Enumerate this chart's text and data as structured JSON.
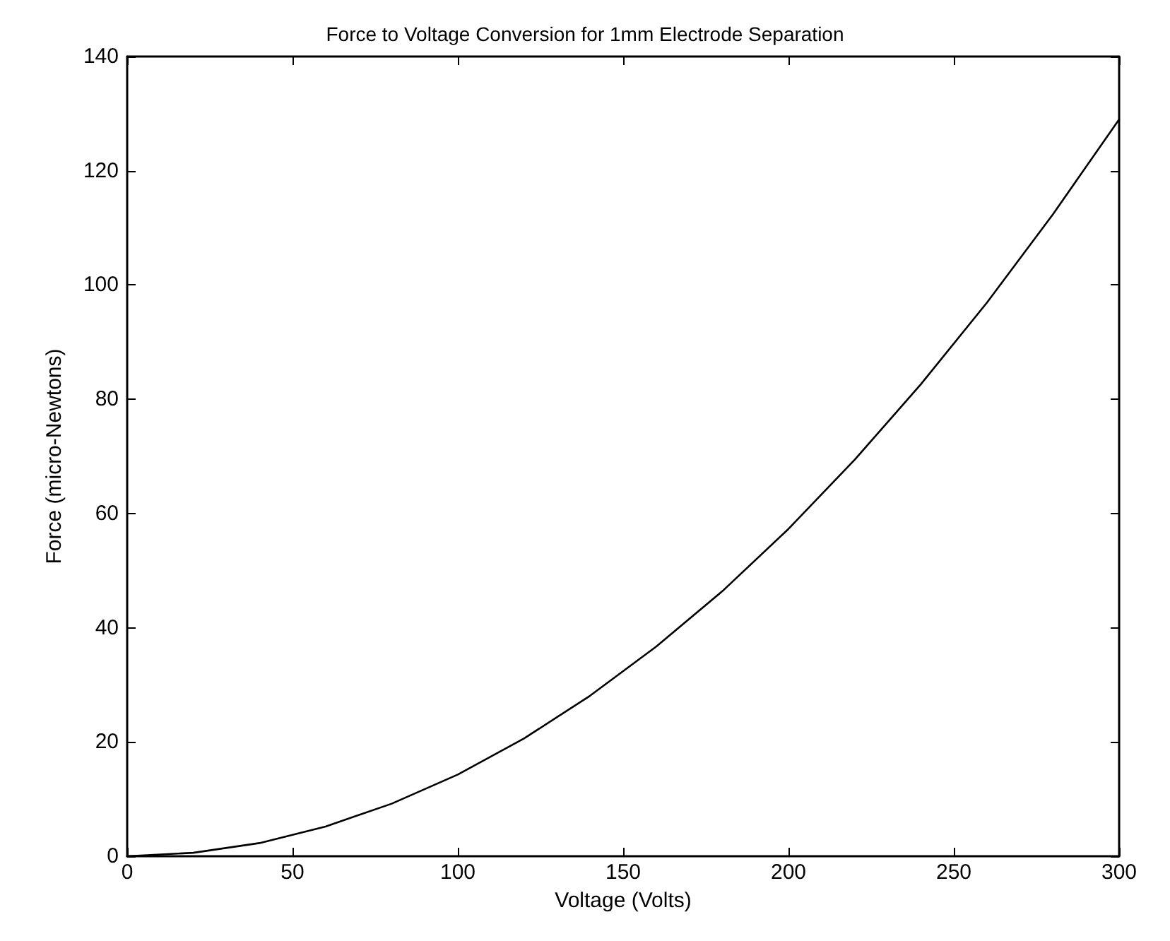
{
  "chart_data": {
    "type": "line",
    "title": "Force to Voltage Conversion for 1mm Electrode Separation",
    "xlabel": "Voltage (Volts)",
    "ylabel": "Force (micro-Newtons)",
    "x": [
      0,
      20,
      40,
      60,
      80,
      100,
      120,
      140,
      160,
      180,
      200,
      220,
      240,
      260,
      280,
      300
    ],
    "series": [
      {
        "color": "#000000",
        "values": [
          0,
          0.6,
          2.3,
          5.2,
          9.2,
          14.3,
          20.6,
          28.1,
          36.7,
          46.4,
          57.3,
          69.4,
          82.6,
          96.9,
          112.4,
          129
        ]
      }
    ],
    "xlim": [
      0,
      300
    ],
    "xticks": [
      0,
      50,
      100,
      150,
      200,
      250,
      300
    ],
    "ylim": [
      0,
      140
    ],
    "yticks": [
      0,
      20,
      40,
      60,
      80,
      100,
      120,
      140
    ],
    "grid": false,
    "marker": "none",
    "line_style": "solid"
  }
}
